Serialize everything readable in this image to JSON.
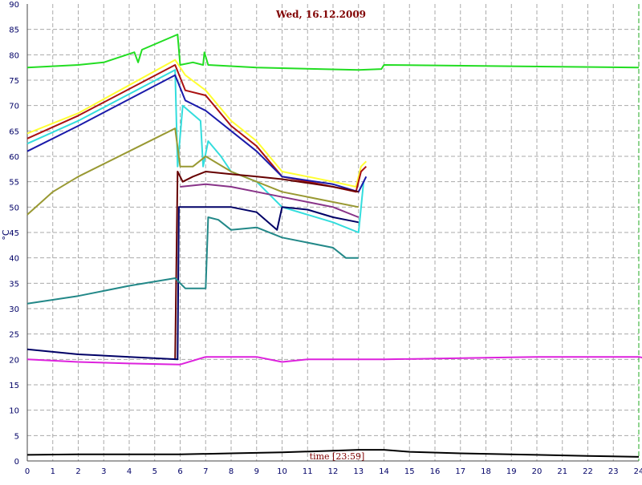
{
  "chart_data": {
    "type": "line",
    "title": "Wed, 16.12.2009",
    "xlabel": "time [23:59]",
    "ylabel": "°C",
    "xlim": [
      0,
      24
    ],
    "ylim": [
      0,
      90
    ],
    "xticks": [
      0,
      1,
      2,
      3,
      4,
      5,
      6,
      7,
      8,
      9,
      10,
      11,
      12,
      13,
      14,
      15,
      16,
      17,
      18,
      19,
      20,
      21,
      22,
      23,
      24
    ],
    "yticks": [
      0,
      5,
      10,
      15,
      20,
      25,
      30,
      35,
      40,
      45,
      50,
      55,
      60,
      65,
      70,
      75,
      80,
      85,
      90
    ],
    "grid": true,
    "series": [
      {
        "color": "#22dd22",
        "values": [
          [
            0,
            77.5
          ],
          [
            2,
            78
          ],
          [
            3,
            78.5
          ],
          [
            4.2,
            80.5
          ],
          [
            4.35,
            78.5
          ],
          [
            4.5,
            81
          ],
          [
            5.9,
            84
          ],
          [
            6,
            78
          ],
          [
            6.5,
            78.5
          ],
          [
            6.9,
            78
          ],
          [
            6.95,
            80.5
          ],
          [
            7.1,
            78
          ],
          [
            9,
            77.5
          ],
          [
            13,
            77
          ],
          [
            13.9,
            77.2
          ],
          [
            14,
            78
          ],
          [
            24,
            77.5
          ]
        ]
      },
      {
        "color": "#ffff33",
        "values": [
          [
            0,
            64.5
          ],
          [
            2,
            68.5
          ],
          [
            5.8,
            79
          ],
          [
            6.2,
            76
          ],
          [
            7,
            73
          ],
          [
            8,
            67
          ],
          [
            9,
            63
          ],
          [
            10,
            57
          ],
          [
            12,
            55
          ],
          [
            12.9,
            54
          ],
          [
            13.1,
            58
          ],
          [
            13.3,
            59
          ]
        ]
      },
      {
        "color": "#aa1111",
        "values": [
          [
            0,
            63.5
          ],
          [
            2,
            68
          ],
          [
            5.8,
            78
          ],
          [
            6.2,
            73
          ],
          [
            7,
            72
          ],
          [
            8,
            66
          ],
          [
            9,
            62
          ],
          [
            10,
            56
          ],
          [
            12,
            54
          ],
          [
            12.9,
            53
          ],
          [
            13.1,
            57
          ],
          [
            13.3,
            58
          ]
        ]
      },
      {
        "color": "#33dddd",
        "values": [
          [
            0,
            62.5
          ],
          [
            2,
            67
          ],
          [
            5.8,
            77
          ],
          [
            5.9,
            58
          ],
          [
            6.1,
            70
          ],
          [
            6.8,
            67
          ],
          [
            6.9,
            58
          ],
          [
            7.1,
            63
          ],
          [
            7.6,
            60
          ],
          [
            8,
            57
          ],
          [
            9,
            55
          ],
          [
            10,
            50
          ],
          [
            12,
            47
          ],
          [
            13,
            45
          ],
          [
            13.2,
            55
          ]
        ]
      },
      {
        "color": "#1a1aaa",
        "values": [
          [
            0,
            61
          ],
          [
            2,
            66
          ],
          [
            5.8,
            76
          ],
          [
            6.2,
            71
          ],
          [
            7,
            69
          ],
          [
            8,
            65
          ],
          [
            9,
            61
          ],
          [
            10,
            56
          ],
          [
            12,
            54.5
          ],
          [
            13,
            53
          ],
          [
            13.3,
            56
          ]
        ]
      },
      {
        "color": "#999933",
        "values": [
          [
            0,
            48.5
          ],
          [
            1,
            53
          ],
          [
            2,
            56
          ],
          [
            4,
            61
          ],
          [
            5.8,
            65.5
          ],
          [
            6,
            58
          ],
          [
            6.5,
            58
          ],
          [
            7,
            60
          ],
          [
            8,
            57
          ],
          [
            10,
            53
          ],
          [
            12,
            51
          ],
          [
            13,
            50
          ]
        ]
      },
      {
        "color": "#660000",
        "values": [
          [
            5.8,
            20
          ],
          [
            5.9,
            57
          ],
          [
            6.1,
            55
          ],
          [
            6.5,
            56
          ],
          [
            7,
            57
          ],
          [
            8,
            56.5
          ],
          [
            9,
            56
          ],
          [
            10,
            55.5
          ],
          [
            12,
            54
          ],
          [
            13,
            53
          ]
        ]
      },
      {
        "color": "#883388",
        "values": [
          [
            6,
            54
          ],
          [
            7,
            54.5
          ],
          [
            8,
            54
          ],
          [
            9,
            53
          ],
          [
            10,
            52
          ],
          [
            11,
            51
          ],
          [
            12,
            50
          ],
          [
            13,
            48
          ]
        ]
      },
      {
        "color": "#000066",
        "values": [
          [
            0,
            22
          ],
          [
            2,
            21
          ],
          [
            4,
            20.5
          ],
          [
            5.9,
            20
          ],
          [
            5.95,
            50
          ],
          [
            7,
            50
          ],
          [
            8,
            50
          ],
          [
            9,
            49
          ],
          [
            9.8,
            45.5
          ],
          [
            10,
            50
          ],
          [
            11,
            49.5
          ],
          [
            12,
            48
          ],
          [
            13,
            47
          ]
        ]
      },
      {
        "color": "#228888",
        "values": [
          [
            0,
            31
          ],
          [
            2,
            32.5
          ],
          [
            4,
            34.5
          ],
          [
            5.8,
            36
          ],
          [
            6.2,
            34
          ],
          [
            7,
            34
          ],
          [
            7.1,
            48
          ],
          [
            7.5,
            47.5
          ],
          [
            8,
            45.5
          ],
          [
            9,
            46
          ],
          [
            10,
            44
          ],
          [
            12,
            42
          ],
          [
            12.5,
            40
          ],
          [
            13,
            40
          ]
        ]
      },
      {
        "color": "#dd22dd",
        "values": [
          [
            0,
            20
          ],
          [
            2,
            19.5
          ],
          [
            4,
            19.2
          ],
          [
            6,
            19
          ],
          [
            7,
            20.5
          ],
          [
            9,
            20.5
          ],
          [
            10,
            19.5
          ],
          [
            11,
            20
          ],
          [
            14,
            20
          ],
          [
            20,
            20.5
          ],
          [
            24,
            20.5
          ],
          [
            24.5,
            20
          ]
        ]
      },
      {
        "color": "#000000",
        "values": [
          [
            0,
            1.2
          ],
          [
            2,
            1.3
          ],
          [
            4,
            1.3
          ],
          [
            6,
            1.3
          ],
          [
            8,
            1.5
          ],
          [
            10,
            1.7
          ],
          [
            12,
            2
          ],
          [
            13,
            2.2
          ],
          [
            14,
            2.2
          ],
          [
            15,
            1.8
          ],
          [
            17,
            1.5
          ],
          [
            20,
            1.2
          ],
          [
            22,
            1
          ],
          [
            24,
            0.8
          ]
        ]
      }
    ]
  }
}
